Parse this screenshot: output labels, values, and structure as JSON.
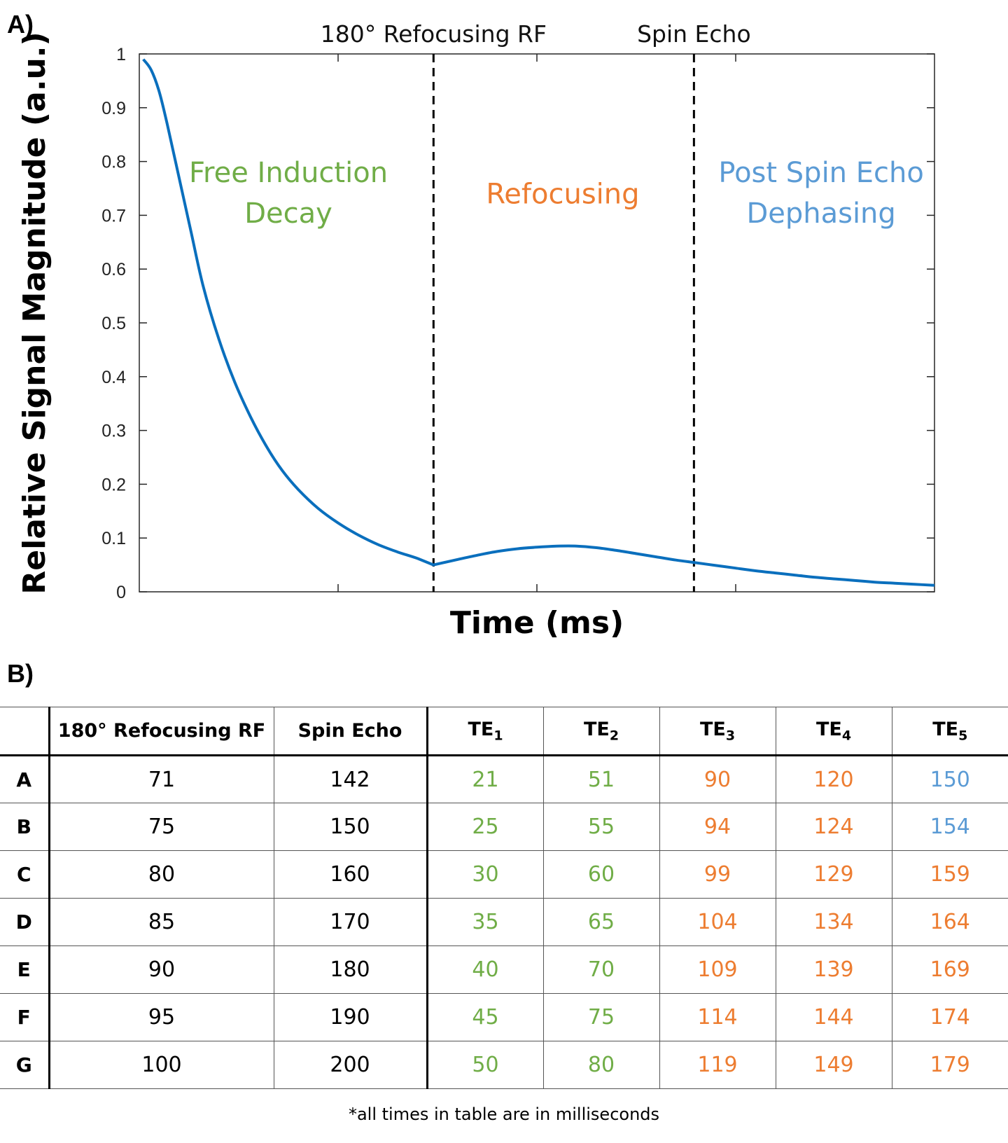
{
  "panels": {
    "a_label": "A)",
    "b_label": "B)"
  },
  "colors": {
    "curve": "#0a6fbd",
    "fid": "#70ad47",
    "refocusing": "#ed7d31",
    "post_echo": "#5b9bd5"
  },
  "chart_data": {
    "type": "line",
    "xlabel": "Time (ms)",
    "ylabel": "Relative Signal Magnitude (a.u.)",
    "ylim": [
      0,
      1
    ],
    "xlim": [
      0,
      200
    ],
    "yticks": [
      0,
      0.1,
      0.2,
      0.3,
      0.4,
      0.5,
      0.6,
      0.7,
      0.8,
      0.9,
      1
    ],
    "ytick_labels": [
      "0",
      "0.1",
      "0.2",
      "0.3",
      "0.4",
      "0.5",
      "0.6",
      "0.7",
      "0.8",
      "0.9",
      "1"
    ],
    "xticks": [
      50,
      100,
      150
    ],
    "grid": false,
    "series": [
      {
        "name": "signal",
        "x": [
          1,
          3,
          5,
          7,
          10,
          13,
          16,
          20,
          24,
          28,
          32,
          36,
          40,
          45,
          50,
          55,
          60,
          65,
          70,
          74,
          80,
          85,
          90,
          95,
          100,
          105,
          110,
          115,
          120,
          125,
          130,
          135,
          140,
          145,
          150,
          155,
          160,
          165,
          170,
          175,
          180,
          185,
          190,
          195,
          200
        ],
        "y": [
          0.99,
          0.97,
          0.93,
          0.87,
          0.77,
          0.67,
          0.57,
          0.47,
          0.39,
          0.325,
          0.27,
          0.225,
          0.19,
          0.155,
          0.128,
          0.106,
          0.088,
          0.074,
          0.062,
          0.05,
          0.06,
          0.068,
          0.075,
          0.08,
          0.083,
          0.085,
          0.085,
          0.082,
          0.077,
          0.071,
          0.065,
          0.059,
          0.054,
          0.049,
          0.044,
          0.039,
          0.035,
          0.031,
          0.027,
          0.024,
          0.021,
          0.018,
          0.016,
          0.014,
          0.012
        ]
      }
    ],
    "vlines": [
      {
        "x": 74,
        "label": "180° Refocusing RF"
      },
      {
        "x": 139.5,
        "label": "Spin Echo"
      }
    ],
    "regions": [
      {
        "name": "fid",
        "lines": [
          "Free Induction",
          "Decay"
        ],
        "x_center": 37.5,
        "y_top": 0.78
      },
      {
        "name": "refocusing",
        "lines": [
          "Refocusing"
        ],
        "x_center": 106.5,
        "y_top": 0.74
      },
      {
        "name": "post-echo",
        "lines": [
          "Post Spin Echo",
          "Dephasing"
        ],
        "x_center": 171.5,
        "y_top": 0.78
      }
    ]
  },
  "table": {
    "headers": [
      "",
      "180° Refocusing RF",
      "Spin Echo",
      "TE",
      "TE",
      "TE",
      "TE",
      "TE"
    ],
    "header_subs": [
      "",
      "",
      "",
      "1",
      "2",
      "3",
      "4",
      "5"
    ],
    "rows": [
      {
        "label": "A",
        "rf": "71",
        "echo": "142",
        "te": [
          "21",
          "51",
          "90",
          "120",
          "150"
        ],
        "te_colors": [
          "green",
          "green",
          "orange",
          "orange",
          "blue"
        ]
      },
      {
        "label": "B",
        "rf": "75",
        "echo": "150",
        "te": [
          "25",
          "55",
          "94",
          "124",
          "154"
        ],
        "te_colors": [
          "green",
          "green",
          "orange",
          "orange",
          "blue"
        ]
      },
      {
        "label": "C",
        "rf": "80",
        "echo": "160",
        "te": [
          "30",
          "60",
          "99",
          "129",
          "159"
        ],
        "te_colors": [
          "green",
          "green",
          "orange",
          "orange",
          "orange"
        ]
      },
      {
        "label": "D",
        "rf": "85",
        "echo": "170",
        "te": [
          "35",
          "65",
          "104",
          "134",
          "164"
        ],
        "te_colors": [
          "green",
          "green",
          "orange",
          "orange",
          "orange"
        ]
      },
      {
        "label": "E",
        "rf": "90",
        "echo": "180",
        "te": [
          "40",
          "70",
          "109",
          "139",
          "169"
        ],
        "te_colors": [
          "green",
          "green",
          "orange",
          "orange",
          "orange"
        ]
      },
      {
        "label": "F",
        "rf": "95",
        "echo": "190",
        "te": [
          "45",
          "75",
          "114",
          "144",
          "174"
        ],
        "te_colors": [
          "green",
          "green",
          "orange",
          "orange",
          "orange"
        ]
      },
      {
        "label": "G",
        "rf": "100",
        "echo": "200",
        "te": [
          "50",
          "80",
          "119",
          "149",
          "179"
        ],
        "te_colors": [
          "green",
          "green",
          "orange",
          "orange",
          "orange"
        ]
      }
    ]
  },
  "footnote": "*all times in table are in milliseconds"
}
